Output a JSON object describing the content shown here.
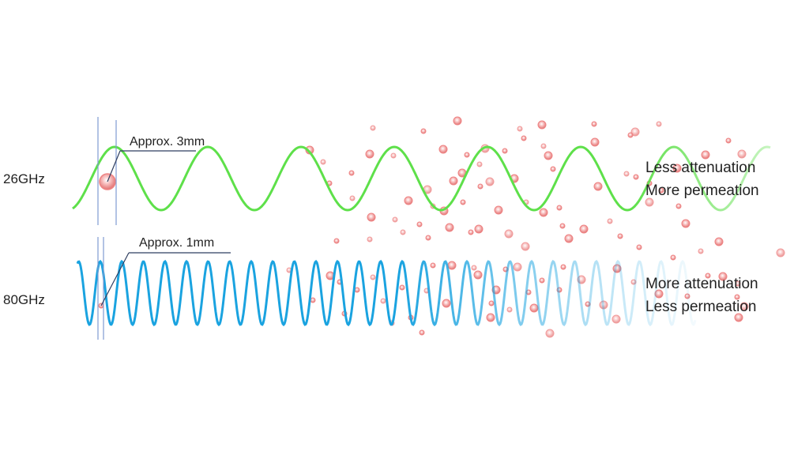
{
  "rows": [
    {
      "frequency": "26GHz",
      "wavelength_label": "Approx. 3mm",
      "effect_lines": [
        "Less attenuation",
        "More permeation"
      ],
      "wave_color": "#5ee04a"
    },
    {
      "frequency": "80GHz",
      "wavelength_label": "Approx. 1mm",
      "effect_lines": [
        "More attenuation",
        "Less permeation"
      ],
      "wave_color": "#1aa3e0"
    }
  ],
  "colors": {
    "particle": "#ee7d7d",
    "guide_line": "#7f9bd1",
    "callout_line": "#2f3e60"
  }
}
